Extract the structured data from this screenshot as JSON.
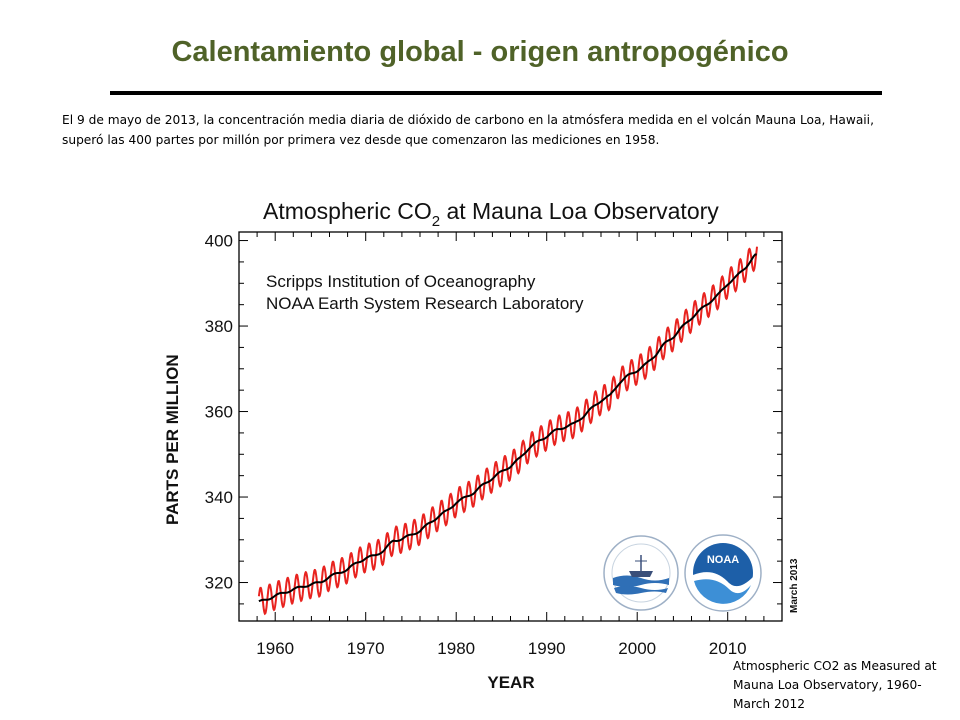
{
  "slide": {
    "title": "Calentamiento global - origen antropogénico",
    "intro": "El 9 de mayo de 2013, la concentración media diaria de dióxido de carbono en la atmósfera medida en el volcán Mauna Loa, Hawaii, superó las 400 partes por millón por primera vez desde que comenzaron las mediciones en 1958.",
    "caption": "Atmospheric CO2 as Measured at Mauna Loa Observatory, 1960-March 2012"
  },
  "chart_data": {
    "type": "line",
    "title_prefix": "Atmospheric CO",
    "title_sub": "2",
    "title_suffix": " at Mauna Loa Observatory",
    "annotation_line1": "Scripps Institution of Oceanography",
    "annotation_line2": "NOAA Earth System Research Laboratory",
    "xlabel": "YEAR",
    "ylabel": "PARTS PER MILLION",
    "side_note": "March 2013",
    "xlim": [
      1956,
      2016
    ],
    "ylim": [
      311,
      402
    ],
    "xticks": [
      1960,
      1970,
      1980,
      1990,
      2000,
      2010
    ],
    "yticks": [
      320,
      340,
      360,
      380,
      400
    ],
    "grid": false,
    "series": [
      {
        "color": "#e8231f",
        "x": [
          1958,
          1959,
          1960,
          1961,
          1962,
          1963,
          1964,
          1965,
          1966,
          1967,
          1968,
          1969,
          1970,
          1971,
          1972,
          1973,
          1974,
          1975,
          1976,
          1977,
          1978,
          1979,
          1980,
          1981,
          1982,
          1983,
          1984,
          1985,
          1986,
          1987,
          1988,
          1989,
          1990,
          1991,
          1992,
          1993,
          1994,
          1995,
          1996,
          1997,
          1998,
          1999,
          2000,
          2001,
          2002,
          2003,
          2004,
          2005,
          2006,
          2007,
          2008,
          2009,
          2010,
          2011,
          2012,
          2013
        ],
        "trend": [
          315.3,
          316.0,
          316.9,
          317.6,
          318.4,
          319.0,
          319.6,
          320.0,
          321.4,
          322.2,
          323.1,
          324.6,
          325.7,
          326.3,
          327.5,
          329.7,
          330.2,
          331.1,
          332.1,
          333.8,
          335.4,
          336.8,
          338.7,
          339.9,
          341.1,
          342.9,
          344.4,
          345.9,
          347.2,
          349.0,
          351.4,
          352.9,
          354.2,
          355.6,
          356.4,
          357.1,
          358.8,
          360.8,
          362.6,
          363.7,
          366.7,
          368.4,
          369.6,
          371.1,
          373.2,
          375.8,
          377.5,
          379.8,
          381.9,
          383.8,
          385.6,
          387.4,
          389.9,
          391.6,
          393.8,
          396.5
        ],
        "seasonal_amplitude": 3.2
      },
      {
        "color": "#000000",
        "x": [
          1958,
          1959,
          1960,
          1961,
          1962,
          1963,
          1964,
          1965,
          1966,
          1967,
          1968,
          1969,
          1970,
          1971,
          1972,
          1973,
          1974,
          1975,
          1976,
          1977,
          1978,
          1979,
          1980,
          1981,
          1982,
          1983,
          1984,
          1985,
          1986,
          1987,
          1988,
          1989,
          1990,
          1991,
          1992,
          1993,
          1994,
          1995,
          1996,
          1997,
          1998,
          1999,
          2000,
          2001,
          2002,
          2003,
          2004,
          2005,
          2006,
          2007,
          2008,
          2009,
          2010,
          2011,
          2012,
          2013
        ],
        "values": [
          315.3,
          316.0,
          316.9,
          317.6,
          318.4,
          319.0,
          319.6,
          320.0,
          321.4,
          322.2,
          323.1,
          324.6,
          325.7,
          326.3,
          327.5,
          329.7,
          330.2,
          331.1,
          332.1,
          333.8,
          335.4,
          336.8,
          338.7,
          339.9,
          341.1,
          342.9,
          344.4,
          345.9,
          347.2,
          349.0,
          351.4,
          352.9,
          354.2,
          355.6,
          356.4,
          357.1,
          358.8,
          360.8,
          362.6,
          363.7,
          366.7,
          368.4,
          369.6,
          371.1,
          373.2,
          375.8,
          377.5,
          379.8,
          381.9,
          383.8,
          385.6,
          387.4,
          389.9,
          391.6,
          393.8,
          396.5
        ]
      }
    ],
    "logos": [
      "scripps-logo",
      "noaa-logo"
    ],
    "logo_text": "NOAA"
  }
}
